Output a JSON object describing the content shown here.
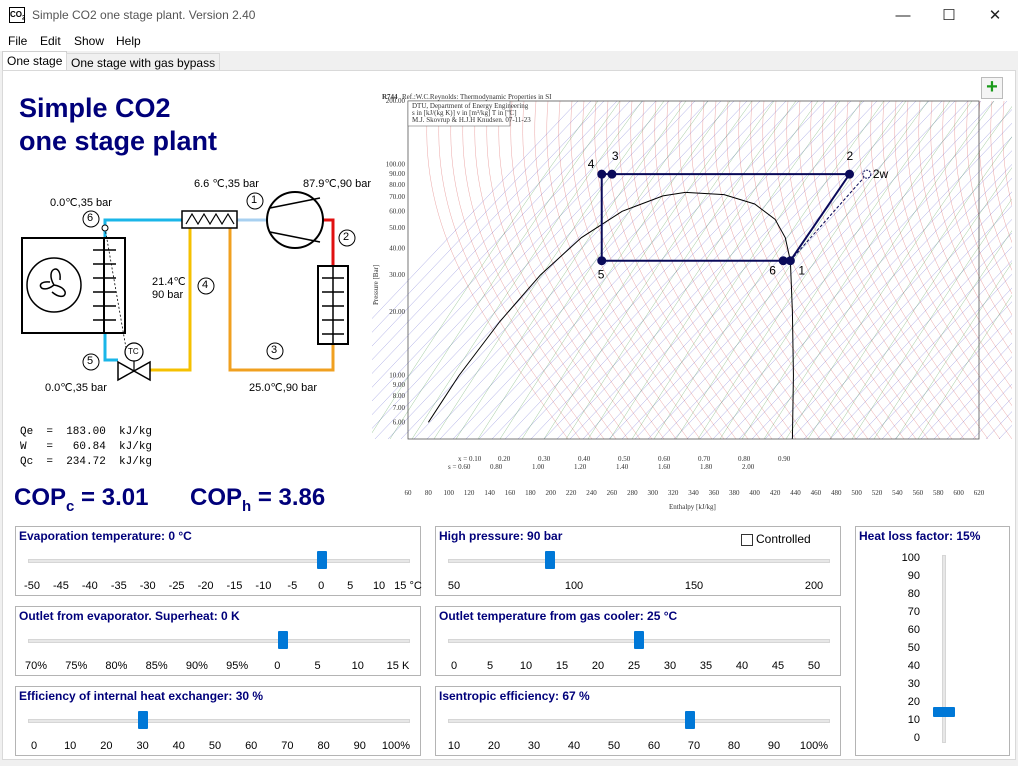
{
  "window": {
    "title": "Simple CO2 one stage plant. Version 2.40",
    "icon_text": "CO",
    "icon_sub": "2",
    "minimize_glyph": "—",
    "maximize_glyph": "☐",
    "close_glyph": "✕"
  },
  "menu": [
    "File",
    "Edit",
    "Show",
    "Help"
  ],
  "tabs": [
    "One stage",
    "One stage with gas bypass"
  ],
  "heading": [
    "Simple CO2",
    "one stage plant"
  ],
  "diagram": {
    "labels": [
      {
        "text": "0.0℃,35 bar"
      },
      {
        "text": "6.6 ℃,35 bar"
      },
      {
        "text": "87.9℃,90 bar"
      },
      {
        "text": "21.4℃"
      },
      {
        "text": "90 bar"
      },
      {
        "text": "0.0℃,35 bar"
      },
      {
        "text": "25.0℃,90 bar"
      }
    ],
    "node_numbers": [
      "1",
      "2",
      "3",
      "4",
      "5",
      "6"
    ],
    "valve_label": "TC"
  },
  "results": [
    "Qe  =  183.00  kJ/kg",
    "W   =   60.84  kJ/kg",
    "Qc  =  234.72  kJ/kg"
  ],
  "cop": {
    "c_label": "COP",
    "c_sub": "c",
    "c_value": "= 3.01",
    "h_label": "COP",
    "h_sub": "h",
    "h_value": "= 3.86"
  },
  "chart_data": {
    "type": "line",
    "title": "R744",
    "ref_text": "Ref.:W.C.Reynolds: Thermodynamic Properties in SI",
    "info_lines": [
      "DTU, Department of Energy Engineering",
      "s in [kJ/(kg K)]  v in [m³/kg]  T in [ºC]",
      "M.J. Skovrup & H.J.H Knudsen. 07-11-23"
    ],
    "xlabel": "Enthalpy [kJ/kg]",
    "ylabel": "Pressure [Bar]",
    "xlim": [
      60,
      620
    ],
    "ylim": [
      5,
      200
    ],
    "log_y": true,
    "x_ticks": [
      60,
      80,
      100,
      120,
      140,
      160,
      180,
      200,
      220,
      240,
      260,
      280,
      300,
      320,
      340,
      360,
      380,
      400,
      420,
      440,
      460,
      480,
      500,
      520,
      540,
      560,
      580,
      600,
      620
    ],
    "x_tick_labels": [
      "60",
      "80",
      "100",
      "120",
      "140",
      "160",
      "180",
      "200",
      "220",
      "240",
      "260",
      "280",
      "300",
      "320",
      "340",
      "360",
      "380",
      "400",
      "420",
      "440",
      "460",
      "480",
      "500",
      "520",
      "540",
      "560",
      "580",
      "600",
      "620"
    ],
    "y_ticks": [
      6,
      7,
      8,
      9,
      10,
      20,
      30,
      40,
      50,
      60,
      70,
      80,
      90,
      100,
      200
    ],
    "y_tick_labels": [
      "6.00",
      "7.00",
      "8.00",
      "9.00",
      "10.00",
      "20.00",
      "30.00",
      "40.00",
      "50.00",
      "60.00",
      "70.00",
      "80.00",
      "90.00",
      "100.00",
      "200.00"
    ],
    "quality_labels": [
      "x = 0.10",
      "0.20",
      "0.30",
      "0.40",
      "0.50",
      "0.60",
      "0.70",
      "0.80",
      "0.90"
    ],
    "volume_labels": [
      "s = 0.60",
      "0.80",
      "1.00",
      "1.20",
      "1.40",
      "1.60",
      "1.80",
      "2.00"
    ],
    "cycle": {
      "points": [
        {
          "label": "1",
          "h": 435,
          "p": 35
        },
        {
          "label": "2",
          "h": 493,
          "p": 90
        },
        {
          "label": "2w",
          "h": 510,
          "p": 90
        },
        {
          "label": "3",
          "h": 260,
          "p": 90
        },
        {
          "label": "4",
          "h": 250,
          "p": 90
        },
        {
          "label": "5",
          "h": 250,
          "p": 35
        },
        {
          "label": "6",
          "h": 428,
          "p": 35
        }
      ],
      "path": [
        "5",
        "6",
        "1",
        "2",
        "3",
        "4",
        "5"
      ],
      "color": "#0a0a5a"
    },
    "dome": {
      "h_critical": 332,
      "p_critical": 73.8,
      "liquid": [
        [
          80,
          6
        ],
        [
          110,
          10
        ],
        [
          150,
          18
        ],
        [
          190,
          30
        ],
        [
          230,
          45
        ],
        [
          270,
          60
        ],
        [
          310,
          71
        ],
        [
          332,
          73.8
        ]
      ],
      "vapor": [
        [
          332,
          73.8
        ],
        [
          370,
          72
        ],
        [
          400,
          65
        ],
        [
          420,
          55
        ],
        [
          430,
          45
        ],
        [
          435,
          35
        ],
        [
          437,
          20
        ],
        [
          438,
          10
        ],
        [
          437,
          5
        ]
      ]
    },
    "series_colors": {
      "isotherms": "#d03030",
      "isentropes": "#3030c0",
      "isochores": "#2a8a2a",
      "quality": "#1a2a8a",
      "dome": "#000000"
    }
  },
  "controls": {
    "plus_label": "+",
    "evap_temp": {
      "title": "Evaporation temperature: 0 °C",
      "ticks": [
        "-50",
        "-45",
        "-40",
        "-35",
        "-30",
        "-25",
        "-20",
        "-15",
        "-10",
        "-5",
        "0",
        "5",
        "10",
        "15 °C"
      ],
      "fraction": 0.769
    },
    "superheat": {
      "title": "Outlet from evaporator. Superheat: 0 K",
      "ticks": [
        "70%",
        "75%",
        "80%",
        "85%",
        "90%",
        "95%",
        "0",
        "5",
        "10",
        "15 K"
      ],
      "fraction": 0.667
    },
    "ihx": {
      "title": "Efficiency of internal heat exchanger: 30 %",
      "ticks": [
        "0",
        "10",
        "20",
        "30",
        "40",
        "50",
        "60",
        "70",
        "80",
        "90",
        "100%"
      ],
      "fraction": 0.3
    },
    "high_pressure": {
      "title": "High pressure: 90 bar",
      "ticks": [
        "50",
        "100",
        "150",
        "200"
      ],
      "tick_values": [
        50,
        100,
        150,
        200
      ],
      "fraction": 0.267,
      "controlled_label": "Controlled",
      "controlled_checked": false
    },
    "gas_cooler": {
      "title": "Outlet temperature from gas cooler: 25 °C",
      "ticks": [
        "0",
        "5",
        "10",
        "15",
        "20",
        "25",
        "30",
        "35",
        "40",
        "45",
        "50"
      ],
      "fraction": 0.5
    },
    "isentropic": {
      "title": "Isentropic efficiency: 67 %",
      "ticks": [
        "10",
        "20",
        "30",
        "40",
        "50",
        "60",
        "70",
        "80",
        "90",
        "100%"
      ],
      "fraction": 0.633
    },
    "heat_loss": {
      "title": "Heat loss factor: 15%",
      "ticks": [
        "100",
        "90",
        "80",
        "70",
        "60",
        "50",
        "40",
        "30",
        "20",
        "10",
        "0"
      ],
      "fraction": 0.15
    }
  }
}
